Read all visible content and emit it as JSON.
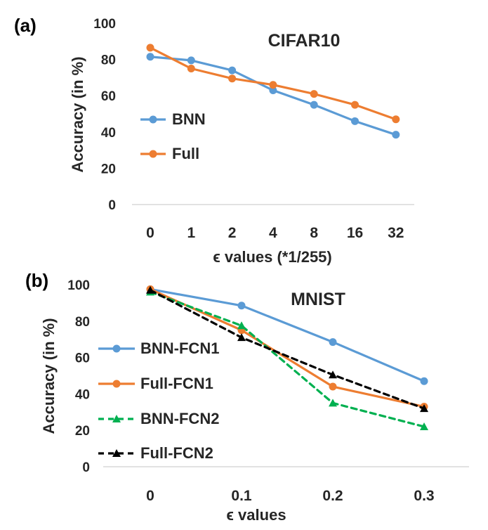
{
  "chart_data": [
    {
      "type": "line",
      "panel_label": "(a)",
      "title": "CIFAR10",
      "xlabel": "ϵ values (*1/255)",
      "ylabel": "Accuracy (in %)",
      "ylim": [
        0,
        100
      ],
      "yticks": [
        "0",
        "20",
        "40",
        "60",
        "80",
        "100"
      ],
      "categories": [
        "0",
        "1",
        "2",
        "4",
        "8",
        "16",
        "32"
      ],
      "series": [
        {
          "name": "BNN",
          "color": "#5B9BD5",
          "dash": "solid",
          "marker": "circle",
          "values": [
            81.5,
            79.5,
            74,
            63,
            55,
            46,
            38.5
          ]
        },
        {
          "name": "Full",
          "color": "#ED7D31",
          "dash": "solid",
          "marker": "circle",
          "values": [
            86.5,
            75,
            69.5,
            66,
            61,
            55,
            47
          ]
        }
      ]
    },
    {
      "type": "line",
      "panel_label": "(b)",
      "title": "MNIST",
      "xlabel": "ϵ values",
      "ylabel": "Accuracy (in %)",
      "ylim": [
        0,
        100
      ],
      "yticks": [
        "0",
        "20",
        "40",
        "60",
        "80",
        "100"
      ],
      "categories": [
        "0",
        "0.1",
        "0.2",
        "0.3"
      ],
      "series": [
        {
          "name": "BNN-FCN1",
          "color": "#5B9BD5",
          "dash": "solid",
          "marker": "circle",
          "values": [
            97.5,
            88.5,
            68.5,
            47
          ]
        },
        {
          "name": "Full-FCN1",
          "color": "#ED7D31",
          "dash": "solid",
          "marker": "circle",
          "values": [
            97.5,
            75,
            44,
            33
          ]
        },
        {
          "name": "BNN-FCN2",
          "color": "#00B050",
          "dash": "dashed",
          "marker": "triangle",
          "values": [
            96,
            77.5,
            35,
            22
          ]
        },
        {
          "name": "Full-FCN2",
          "color": "#000000",
          "dash": "dashed",
          "marker": "triangle",
          "values": [
            97,
            71,
            50.5,
            32
          ]
        }
      ]
    }
  ]
}
